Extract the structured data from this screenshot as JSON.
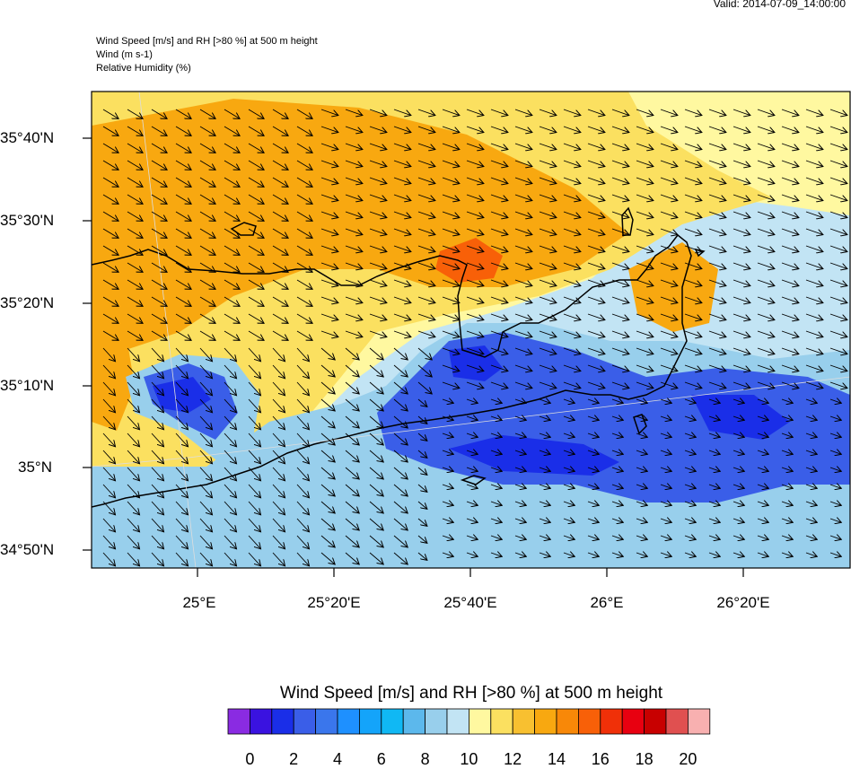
{
  "header": {
    "valid": "Valid: 2014-07-09_14:00:00",
    "line1": "Wind Speed [m/s] and RH [>80 %] at 500 m height",
    "line2": "Wind   (m s-1)",
    "line3": "Relative Humidity   (%)"
  },
  "lat_labels": [
    "35°40'N",
    "35°30'N",
    "35°20'N",
    "35°10'N",
    "35°N",
    "34°50'N"
  ],
  "lon_labels": [
    "25°E",
    "25°20'E",
    "25°40'E",
    "26°E",
    "26°20'E"
  ],
  "colorbar": {
    "title": "Wind Speed [m/s] and RH [>80 %] at 500 m height",
    "ticks": [
      "0",
      "2",
      "4",
      "6",
      "8",
      "10",
      "12",
      "14",
      "16",
      "18",
      "20"
    ],
    "colors": [
      "#8a2be2",
      "#3a12e0",
      "#1a2ee8",
      "#3a5ee8",
      "#3a76ec",
      "#1e90ff",
      "#14a4fa",
      "#10b8f4",
      "#5cb8ec",
      "#98cfec",
      "#c2e4f4",
      "#fff8a0",
      "#fbe060",
      "#f8c030",
      "#f8a810",
      "#f88808",
      "#f86008",
      "#f03008",
      "#e80010",
      "#c80000",
      "#e05050",
      "#f8b0b0"
    ]
  },
  "palette": {
    "strong": "#f8a810",
    "vstrong": "#f86008",
    "moderate": "#fbe060",
    "weak": "#98cfec",
    "calm": "#3a5ee8",
    "vcalm": "#1a2ee8",
    "light": "#fff8a0",
    "sky": "#c2e4f4"
  }
}
